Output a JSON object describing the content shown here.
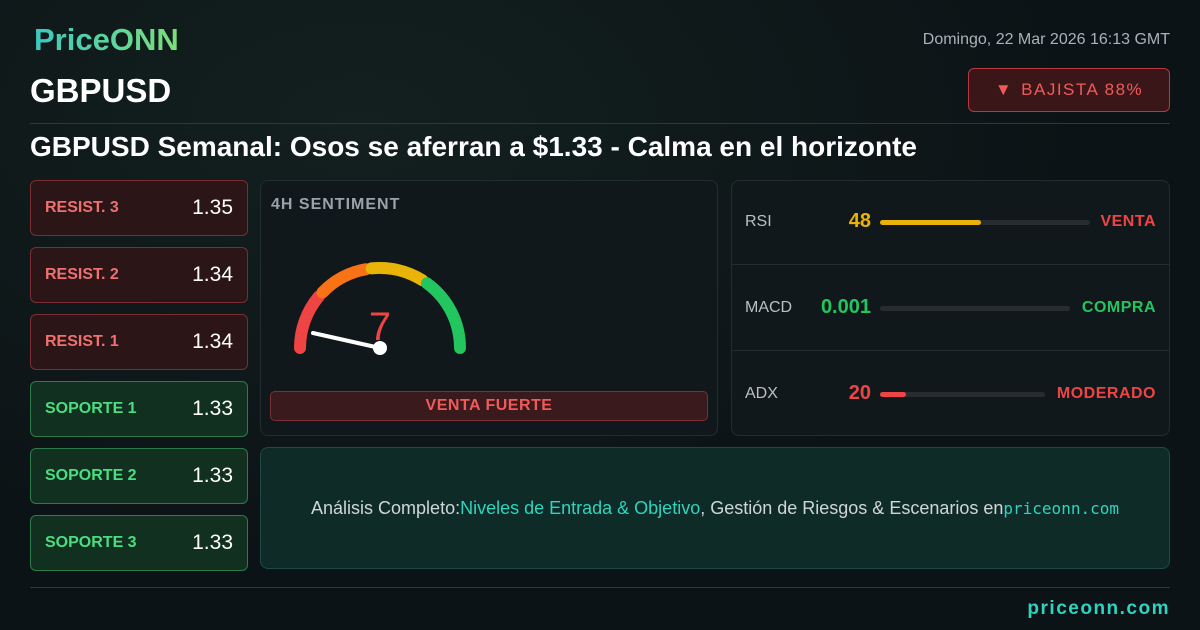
{
  "header": {
    "logo": "PriceONN",
    "date": "Domingo, 22 Mar 2026 16:13 GMT",
    "symbol": "GBPUSD",
    "badge": "BAJISTA 88%",
    "title": "GBPUSD Semanal: Osos se aferran a $1.33 - Calma en el horizonte"
  },
  "levels": [
    {
      "label": "RESIST. 3",
      "value": 1.35
    },
    {
      "label": "RESIST. 2",
      "value": 1.34
    },
    {
      "label": "RESIST. 1",
      "value": 1.34
    },
    {
      "label": "SOPORTE 1",
      "value": 1.33
    },
    {
      "label": "SOPORTE 2",
      "value": 1.33
    },
    {
      "label": "SOPORTE 3",
      "value": 1.33
    }
  ],
  "sentiment": {
    "label": "4H SENTIMENT",
    "value": 7,
    "verdict": "VENTA FUERTE"
  },
  "indicators": [
    {
      "name": "RSI",
      "value": 48,
      "signal": "VENTA"
    },
    {
      "name": "MACD",
      "value": 0.001,
      "signal": "COMPRA"
    },
    {
      "name": "ADX",
      "value": 20,
      "signal": "MODERADO"
    }
  ],
  "banner": {
    "lead": "Análisis Completo:",
    "highlight": "Niveles de Entrada & Objetivo",
    "rest": ", Gestión de Riesgos & Escenarios en",
    "site": "priceonn.com"
  },
  "footer": {
    "site": "priceonn.com"
  }
}
